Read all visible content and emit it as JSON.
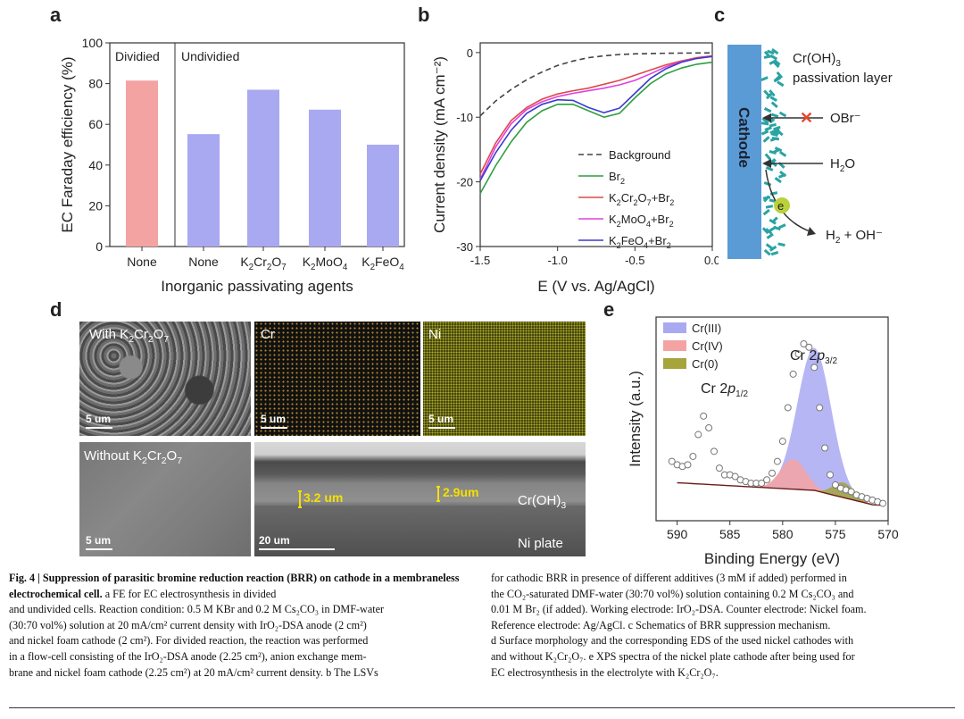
{
  "panels": {
    "a": {
      "letter": "a",
      "chart_data": {
        "type": "bar",
        "categories": [
          "None",
          "None",
          "K2Cr2O7",
          "K2MoO4",
          "K2FeO4"
        ],
        "values": [
          81.5,
          55.2,
          77.0,
          67.2,
          50.0
        ],
        "groups": [
          "Dividied",
          "Undividied",
          "Undividied",
          "Undividied",
          "Undividied"
        ],
        "title": "",
        "xlabel": "Inorganic passivating agents",
        "ylabel": "EC Faraday efficiency (%)",
        "ylim": [
          0,
          100
        ],
        "yticks": [
          0,
          20,
          40,
          60,
          80,
          100
        ],
        "group_labels": [
          "Dividied",
          "Undividied"
        ],
        "colors": {
          "divided": "#f4a3a3",
          "undivided": "#a9a9f2"
        }
      }
    },
    "b": {
      "letter": "b",
      "chart_data": {
        "type": "line",
        "xlabel": "E (V vs. Ag/AgCl)",
        "ylabel": "Current density (mA cm⁻²)",
        "xlim": [
          -1.5,
          0.0
        ],
        "ylim": [
          -30,
          1.5
        ],
        "xticks": [
          -1.5,
          -1.0,
          -0.5,
          0.0
        ],
        "yticks": [
          -30,
          -20,
          -10,
          0
        ],
        "series": [
          {
            "name": "Background",
            "color": "#444444",
            "dash": true,
            "x": [
              -1.5,
              -1.4,
              -1.3,
              -1.2,
              -1.1,
              -1.0,
              -0.9,
              -0.8,
              -0.7,
              -0.6,
              -0.5,
              -0.3,
              0.0
            ],
            "y": [
              -9.8,
              -7.5,
              -5.7,
              -4.2,
              -3.0,
              -2.0,
              -1.3,
              -0.8,
              -0.5,
              -0.3,
              -0.2,
              -0.1,
              -0.05
            ]
          },
          {
            "name": "Br2",
            "color": "#2e9e3e",
            "dash": false,
            "x": [
              -1.5,
              -1.4,
              -1.3,
              -1.2,
              -1.1,
              -1.0,
              -0.9,
              -0.8,
              -0.7,
              -0.6,
              -0.5,
              -0.4,
              -0.3,
              -0.2,
              -0.1,
              0.0
            ],
            "y": [
              -21.8,
              -17.5,
              -13.8,
              -10.8,
              -9.0,
              -8.0,
              -8.0,
              -9.0,
              -10.0,
              -9.4,
              -7.0,
              -4.8,
              -3.3,
              -2.4,
              -1.8,
              -1.5
            ]
          },
          {
            "name": "K2Cr2O7+Br2",
            "color": "#e04848",
            "dash": false,
            "x": [
              -1.5,
              -1.4,
              -1.3,
              -1.2,
              -1.1,
              -1.0,
              -0.9,
              -0.8,
              -0.7,
              -0.6,
              -0.5,
              -0.4,
              -0.3,
              -0.2,
              -0.1,
              0.0
            ],
            "y": [
              -18.8,
              -14.0,
              -10.5,
              -8.5,
              -7.2,
              -6.4,
              -5.9,
              -5.5,
              -4.9,
              -4.3,
              -3.5,
              -2.7,
              -1.9,
              -1.3,
              -0.8,
              -0.5
            ]
          },
          {
            "name": "K2MoO4+Br2",
            "color": "#e040e0",
            "dash": false,
            "x": [
              -1.5,
              -1.4,
              -1.3,
              -1.2,
              -1.1,
              -1.0,
              -0.9,
              -0.8,
              -0.7,
              -0.6,
              -0.5,
              -0.4,
              -0.3,
              -0.2,
              -0.1,
              0.0
            ],
            "y": [
              -19.6,
              -14.6,
              -11.0,
              -8.8,
              -7.6,
              -6.8,
              -6.3,
              -5.9,
              -5.5,
              -5.0,
              -4.3,
              -3.3,
              -2.2,
              -1.4,
              -0.9,
              -0.6
            ]
          },
          {
            "name": "K2FeO4+Br2",
            "color": "#3a3ad0",
            "dash": false,
            "x": [
              -1.5,
              -1.4,
              -1.3,
              -1.2,
              -1.1,
              -1.0,
              -0.9,
              -0.8,
              -0.7,
              -0.6,
              -0.5,
              -0.4,
              -0.3,
              -0.2,
              -0.1,
              0.0
            ],
            "y": [
              -19.8,
              -15.5,
              -12.0,
              -9.4,
              -8.0,
              -7.3,
              -7.4,
              -8.5,
              -9.3,
              -8.6,
              -6.3,
              -4.0,
              -2.5,
              -1.5,
              -0.9,
              -0.6
            ]
          }
        ]
      }
    },
    "c": {
      "letter": "c",
      "cathode_label": "Cathode",
      "layer_label_1": "Cr(OH)3",
      "layer_label_2": "passivation layer",
      "obr_label": "OBr⁻",
      "h2o_label": "H2O",
      "electron_label": "e",
      "product_label": "H2 + OH⁻",
      "colors": {
        "cathode": "#5b9bd5",
        "layer": "#2aa3a3",
        "block": "#e8462d",
        "electron": "#b9d23c"
      }
    },
    "d": {
      "letter": "d",
      "tile_with": "With K2Cr2O7",
      "tile_cr": "Cr",
      "tile_ni": "Ni",
      "tile_without": "Without K2Cr2O7",
      "scale_5um": "5 um",
      "scale_20um": "20 um",
      "thickness_1": "3.2 um",
      "thickness_2": "2.9um",
      "layer_label": "Cr(OH)3",
      "plate_label": "Ni plate"
    },
    "e": {
      "letter": "e",
      "chart_data": {
        "type": "scatter",
        "xlabel": "Binding Energy (eV)",
        "ylabel": "Intensity (a.u.)",
        "xlim": [
          592,
          570
        ],
        "xticks": [
          590,
          585,
          580,
          575,
          570
        ],
        "legend": [
          "Cr(III)",
          "Cr(IV)",
          "Cr(0)"
        ],
        "legend_colors": [
          "#a9a9f2",
          "#f4a3a3",
          "#a5a53c"
        ],
        "peak_labels": [
          "Cr 2p1/2",
          "Cr 2p3/2"
        ],
        "peaks": [
          {
            "name": "Cr(III)",
            "center": 577.0,
            "height": 0.85,
            "width": 1.6
          },
          {
            "name": "Cr(IV)",
            "center": 579.0,
            "height": 0.18,
            "width": 1.2
          },
          {
            "name": "Cr(0)",
            "center": 574.2,
            "height": 0.09,
            "width": 1.0
          }
        ],
        "points_x": [
          592.0,
          591.5,
          591.0,
          590.5,
          590.0,
          589.5,
          589.0,
          588.5,
          588.0,
          587.5,
          587.0,
          586.5,
          586.0,
          585.5,
          585.0,
          584.5,
          584.0,
          583.5,
          583.0,
          582.5,
          582.0,
          581.5,
          581.0,
          580.5,
          580.0,
          579.5,
          579.0,
          578.5,
          578.0,
          577.5,
          577.0,
          576.5,
          576.0,
          575.5,
          575.0,
          574.5,
          574.0,
          573.5,
          573.0,
          572.5,
          572.0,
          571.5,
          571.0,
          570.5
        ],
        "points_y": [
          0.26,
          0.28,
          0.29,
          0.3,
          0.28,
          0.27,
          0.28,
          0.33,
          0.46,
          0.57,
          0.5,
          0.36,
          0.26,
          0.22,
          0.22,
          0.21,
          0.19,
          0.18,
          0.17,
          0.17,
          0.17,
          0.19,
          0.23,
          0.3,
          0.42,
          0.62,
          0.82,
          0.94,
          1.0,
          0.98,
          0.86,
          0.62,
          0.38,
          0.22,
          0.16,
          0.14,
          0.13,
          0.12,
          0.1,
          0.09,
          0.08,
          0.07,
          0.06,
          0.05
        ]
      }
    }
  },
  "caption": {
    "fig": "Fig. 4",
    "sep": " | ",
    "title": "Suppression of parasitic bromine reduction reaction (BRR) on cathode in a membraneless electrochemical cell.",
    "col1_lines": [
      "a FE for EC electrosynthesis in divided",
      "and undivided cells. Reaction condition: 0.5 M KBr and 0.2 M Cs₂CO₃ in DMF-water",
      "(30:70 vol%) solution at 20 mA/cm² current density with IrO₂-DSA anode (2 cm²)",
      "and nickel foam cathode (2 cm²). For divided reaction, the reaction was performed",
      "in a flow-cell consisting of the IrO₂-DSA anode (2.25 cm²), anion exchange mem-",
      "brane and nickel foam cathode (2.25 cm²) at 20 mA/cm² current density. b The LSVs"
    ],
    "col2_lines": [
      "for cathodic BRR in presence of different additives (3 mM if added) performed in",
      "the CO₂-saturated DMF-water (30:70 vol%) solution containing 0.2 M Cs₂CO₃ and",
      "0.01 M Br₂ (if added). Working electrode: IrO₂-DSA. Counter electrode: Nickel foam.",
      "Reference electrode: Ag/AgCl. c Schematics of BRR suppression mechanism.",
      "d Surface morphology and the corresponding EDS of the used nickel cathodes with",
      "and without K₂Cr₂O₇. e XPS spectra of the nickel plate cathode after being used for",
      "EC electrosynthesis in the electrolyte with K₂Cr₂O₇."
    ]
  }
}
